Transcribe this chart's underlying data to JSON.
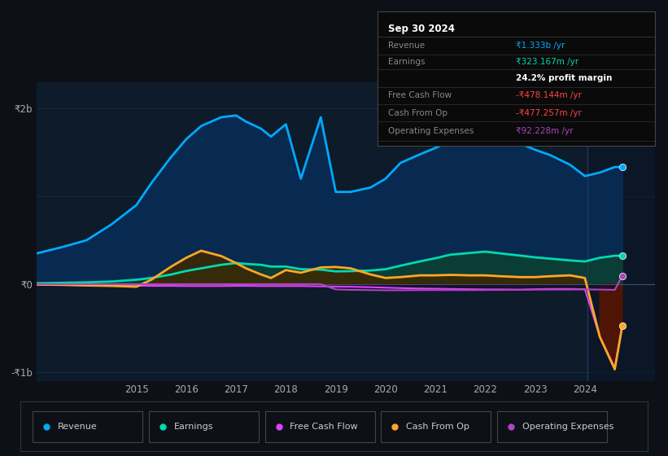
{
  "bg_color": "#0d1117",
  "plot_bg_color": "#0d1b2a",
  "grid_color": "#1a3355",
  "years": [
    2013.0,
    2013.5,
    2014.0,
    2014.5,
    2015.0,
    2015.3,
    2015.7,
    2016.0,
    2016.3,
    2016.7,
    2017.0,
    2017.2,
    2017.5,
    2017.7,
    2018.0,
    2018.3,
    2018.7,
    2019.0,
    2019.3,
    2019.7,
    2020.0,
    2020.3,
    2020.7,
    2021.0,
    2021.3,
    2021.7,
    2022.0,
    2022.3,
    2022.7,
    2023.0,
    2023.3,
    2023.7,
    2024.0,
    2024.3,
    2024.6,
    2024.75
  ],
  "revenue": [
    350,
    420,
    500,
    680,
    900,
    1150,
    1450,
    1650,
    1800,
    1900,
    1920,
    1850,
    1770,
    1680,
    1820,
    1200,
    1900,
    1050,
    1050,
    1100,
    1200,
    1380,
    1480,
    1550,
    1630,
    1660,
    1700,
    1660,
    1600,
    1530,
    1470,
    1360,
    1230,
    1270,
    1333,
    1333
  ],
  "earnings": [
    10,
    15,
    20,
    30,
    50,
    70,
    110,
    150,
    180,
    220,
    240,
    230,
    220,
    200,
    200,
    170,
    165,
    145,
    148,
    155,
    170,
    210,
    260,
    295,
    335,
    355,
    370,
    350,
    325,
    305,
    290,
    270,
    258,
    300,
    323,
    323
  ],
  "free_cash_flow": [
    -8,
    -10,
    -12,
    -15,
    -18,
    -20,
    -20,
    -22,
    -22,
    -22,
    -20,
    -20,
    -22,
    -22,
    -22,
    -22,
    -25,
    -28,
    -30,
    -35,
    -40,
    -45,
    -50,
    -52,
    -55,
    -58,
    -60,
    -60,
    -62,
    -58,
    -55,
    -55,
    -58,
    -600,
    -950,
    -478
  ],
  "cash_from_op": [
    -5,
    -8,
    -15,
    -20,
    -30,
    50,
    200,
    300,
    380,
    320,
    240,
    180,
    110,
    70,
    160,
    130,
    190,
    195,
    180,
    110,
    70,
    80,
    100,
    100,
    105,
    100,
    100,
    90,
    80,
    80,
    90,
    100,
    70,
    -600,
    -970,
    -477
  ],
  "operating_expenses": [
    0,
    0,
    0,
    0,
    0,
    0,
    0,
    0,
    0,
    0,
    0,
    0,
    0,
    0,
    0,
    0,
    0,
    -60,
    -65,
    -68,
    -70,
    -70,
    -68,
    -68,
    -68,
    -68,
    -67,
    -66,
    -65,
    -62,
    -62,
    -62,
    -60,
    -62,
    -65,
    92
  ],
  "revenue_color": "#00aaff",
  "earnings_color": "#00d9b0",
  "fcf_color": "#e040fb",
  "cashop_color": "#ffa726",
  "opex_color": "#ab47bc",
  "revenue_fill": "#082a50",
  "earnings_fill": "#0a3d35",
  "cashop_pos_fill": "#3d2800",
  "cashop_neg_fill": "#5a1500",
  "opex_neg_fill": "#1e0a2e",
  "ytick_values": [
    2000,
    0,
    -1000
  ],
  "ytick_labels": [
    "₹2b",
    "₹0",
    "-₹1b"
  ],
  "ylim": [
    -1100,
    2300
  ],
  "xlim_start": 2013.0,
  "xlim_end": 2025.4,
  "xticks": [
    2015,
    2016,
    2017,
    2018,
    2019,
    2020,
    2021,
    2022,
    2023,
    2024
  ],
  "separator_x": 2024.05,
  "info_date": "Sep 30 2024",
  "info_rows": [
    {
      "label": "Revenue",
      "value": "₹1.333b /yr",
      "value_color": "#00aaff",
      "label_color": "#888888"
    },
    {
      "label": "Earnings",
      "value": "₹323.167m /yr",
      "value_color": "#00d9b0",
      "label_color": "#888888"
    },
    {
      "label": "",
      "value": "24.2% profit margin",
      "value_color": "#ffffff",
      "label_color": "#888888"
    },
    {
      "label": "Free Cash Flow",
      "value": "-₹478.144m /yr",
      "value_color": "#ff4444",
      "label_color": "#888888"
    },
    {
      "label": "Cash From Op",
      "value": "-₹477.257m /yr",
      "value_color": "#ff4444",
      "label_color": "#888888"
    },
    {
      "label": "Operating Expenses",
      "value": "₹92.228m /yr",
      "value_color": "#ab47bc",
      "label_color": "#888888"
    }
  ],
  "legend": [
    {
      "label": "Revenue",
      "color": "#00aaff"
    },
    {
      "label": "Earnings",
      "color": "#00d9b0"
    },
    {
      "label": "Free Cash Flow",
      "color": "#e040fb"
    },
    {
      "label": "Cash From Op",
      "color": "#ffa726"
    },
    {
      "label": "Operating Expenses",
      "color": "#ab47bc"
    }
  ]
}
